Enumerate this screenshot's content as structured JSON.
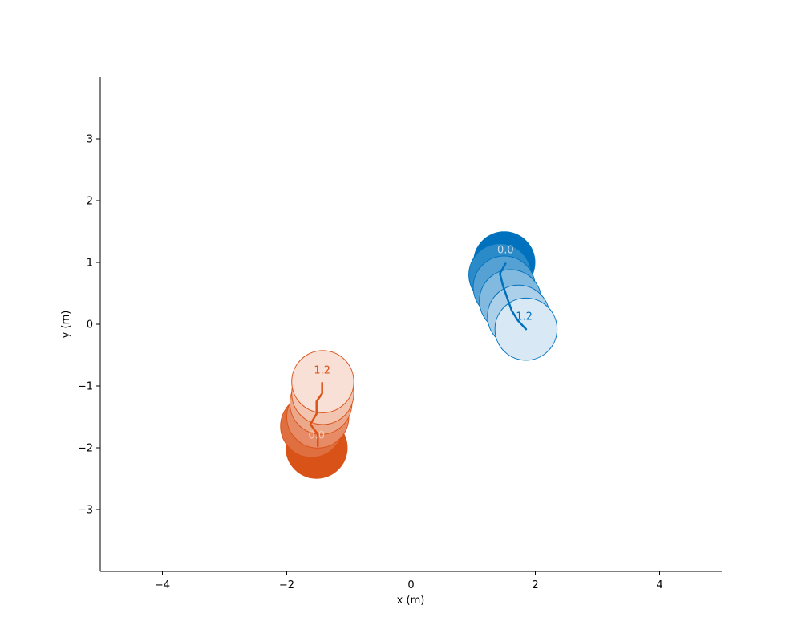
{
  "chart_data": {
    "type": "scatter",
    "title": "",
    "xlabel": "x (m)",
    "ylabel": "y (m)",
    "xlim": [
      -5,
      5
    ],
    "ylim": [
      -4,
      4
    ],
    "xticks": [
      -4,
      -2,
      0,
      2,
      4
    ],
    "yticks": [
      -3,
      -2,
      -1,
      0,
      1,
      2,
      3
    ],
    "xtick_labels": [
      "−4",
      "−2",
      "0",
      "2",
      "4"
    ],
    "ytick_labels": [
      "−3",
      "−2",
      "−1",
      "0",
      "1",
      "2",
      "3"
    ],
    "grid": false,
    "legend": "none",
    "agent_radius_m": 0.5,
    "series": [
      {
        "color": "#0072bd",
        "fill_light": "#d8e8f5",
        "edge_color": "#0072bd",
        "x": [
          1.5,
          1.43,
          1.5,
          1.6,
          1.73,
          1.85
        ],
        "y": [
          1.0,
          0.8,
          0.6,
          0.38,
          0.13,
          -0.08
        ],
        "path_x": [
          1.52,
          1.43,
          1.48,
          1.55,
          1.62,
          1.72,
          1.85
        ],
        "path_y": [
          0.98,
          0.82,
          0.62,
          0.42,
          0.22,
          0.06,
          -0.08
        ],
        "time_labels": [
          {
            "text": "0.0",
            "x": 1.52,
            "y": 1.15,
            "color": "#c8dcec"
          },
          {
            "text": "1.2",
            "x": 1.82,
            "y": 0.07,
            "color": "#0072bd"
          }
        ]
      },
      {
        "color": "#d95319",
        "fill_light": "#f9e0d6",
        "edge_color": "#d95319",
        "x": [
          -1.52,
          -1.6,
          -1.5,
          -1.45,
          -1.42,
          -1.42
        ],
        "y": [
          -2.0,
          -1.65,
          -1.5,
          -1.28,
          -1.12,
          -0.93
        ],
        "path_x": [
          -1.5,
          -1.5,
          -1.62,
          -1.52,
          -1.52,
          -1.43,
          -1.43
        ],
        "path_y": [
          -1.97,
          -1.78,
          -1.62,
          -1.45,
          -1.25,
          -1.12,
          -0.95
        ],
        "time_labels": [
          {
            "text": "0.0",
            "x": -1.52,
            "y": -1.85,
            "color": "#f2c7b0"
          },
          {
            "text": "1.2",
            "x": -1.43,
            "y": -0.8,
            "color": "#d95319"
          }
        ]
      }
    ]
  }
}
